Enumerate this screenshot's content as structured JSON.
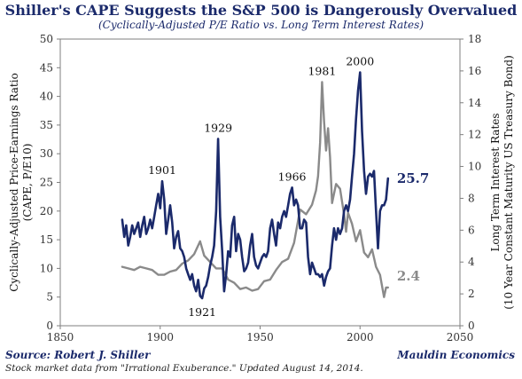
{
  "title": "Shiller's CAPE Suggests the S&P 500 is Dangerously Overvalued",
  "subtitle": "(Cyclically-Adjusted P/E Ratio vs. Long Term Interest Rates)",
  "source": "Source: Robert J. Shiller",
  "publisher": "Mauldin Economics",
  "footnote": "Stock market data from \"Irrational Exuberance.\" Updated August 14, 2014.",
  "chart_data": {
    "type": "line",
    "title": "Shiller's CAPE Suggests the S&P 500 is Dangerously Overvalued",
    "subtitle": "(Cyclically-Adjusted P/E Ratio vs. Long Term Interest Rates)",
    "xlim": [
      1850,
      2050
    ],
    "xticks": [
      1850,
      1900,
      1950,
      2000,
      2050
    ],
    "ylabel_left_line1": "Cyclically-Adjusted Price-Earnings Ratio",
    "ylabel_left_line2": "(CAPE, P/E10)",
    "ylabel_right_line1": "Long Term Interest Rates",
    "ylabel_right_line2": "(10 Year Constant Maturity US Treasury Bond)",
    "ylim_left": [
      0,
      50
    ],
    "yticks_left": [
      0,
      5,
      10,
      15,
      20,
      25,
      30,
      35,
      40,
      45,
      50
    ],
    "ylim_right": [
      0,
      18
    ],
    "yticks_right": [
      0,
      2,
      4,
      6,
      8,
      10,
      12,
      14,
      16,
      18
    ],
    "grid": false,
    "series": [
      {
        "axis": "left",
        "color": "#1b2a6b",
        "end_label": "25.7",
        "points": [
          [
            1881,
            18.5
          ],
          [
            1882,
            15.5
          ],
          [
            1883,
            17.5
          ],
          [
            1884,
            14
          ],
          [
            1885,
            15.5
          ],
          [
            1886,
            17.5
          ],
          [
            1887,
            16
          ],
          [
            1888,
            17
          ],
          [
            1889,
            18
          ],
          [
            1890,
            15.5
          ],
          [
            1891,
            17.5
          ],
          [
            1892,
            19
          ],
          [
            1893,
            16
          ],
          [
            1894,
            17
          ],
          [
            1895,
            18.5
          ],
          [
            1896,
            17
          ],
          [
            1897,
            19
          ],
          [
            1898,
            21
          ],
          [
            1899,
            23
          ],
          [
            1900,
            20.5
          ],
          [
            1901,
            25.2
          ],
          [
            1902,
            22
          ],
          [
            1903,
            16
          ],
          [
            1904,
            18.5
          ],
          [
            1905,
            21
          ],
          [
            1906,
            18
          ],
          [
            1907,
            13.5
          ],
          [
            1908,
            15.5
          ],
          [
            1909,
            16.5
          ],
          [
            1910,
            13.5
          ],
          [
            1911,
            13
          ],
          [
            1912,
            12
          ],
          [
            1913,
            10
          ],
          [
            1914,
            9
          ],
          [
            1915,
            8
          ],
          [
            1916,
            9
          ],
          [
            1917,
            7
          ],
          [
            1918,
            6
          ],
          [
            1919,
            8
          ],
          [
            1920,
            5.2
          ],
          [
            1921,
            4.8
          ],
          [
            1922,
            6.5
          ],
          [
            1923,
            7
          ],
          [
            1924,
            8.5
          ],
          [
            1925,
            10.5
          ],
          [
            1926,
            12
          ],
          [
            1927,
            14
          ],
          [
            1928,
            20
          ],
          [
            1929,
            32.6
          ],
          [
            1930,
            19
          ],
          [
            1931,
            13
          ],
          [
            1932,
            6
          ],
          [
            1933,
            9
          ],
          [
            1934,
            13
          ],
          [
            1935,
            12
          ],
          [
            1936,
            17.5
          ],
          [
            1937,
            19
          ],
          [
            1938,
            13
          ],
          [
            1939,
            16
          ],
          [
            1940,
            15
          ],
          [
            1941,
            12
          ],
          [
            1942,
            9.5
          ],
          [
            1943,
            10
          ],
          [
            1944,
            11
          ],
          [
            1945,
            14
          ],
          [
            1946,
            16
          ],
          [
            1947,
            12
          ],
          [
            1948,
            10.5
          ],
          [
            1949,
            10
          ],
          [
            1950,
            11
          ],
          [
            1951,
            12
          ],
          [
            1952,
            12.5
          ],
          [
            1953,
            12
          ],
          [
            1954,
            13
          ],
          [
            1955,
            17
          ],
          [
            1956,
            18.5
          ],
          [
            1957,
            16
          ],
          [
            1958,
            14
          ],
          [
            1959,
            18
          ],
          [
            1960,
            17
          ],
          [
            1961,
            19
          ],
          [
            1962,
            20
          ],
          [
            1963,
            19
          ],
          [
            1964,
            21
          ],
          [
            1965,
            23
          ],
          [
            1966,
            24.1
          ],
          [
            1967,
            21
          ],
          [
            1968,
            22
          ],
          [
            1969,
            21
          ],
          [
            1970,
            17
          ],
          [
            1971,
            17
          ],
          [
            1972,
            18.5
          ],
          [
            1973,
            18
          ],
          [
            1974,
            12
          ],
          [
            1975,
            9
          ],
          [
            1976,
            11
          ],
          [
            1977,
            10
          ],
          [
            1978,
            9
          ],
          [
            1979,
            9
          ],
          [
            1980,
            8.5
          ],
          [
            1981,
            9
          ],
          [
            1982,
            7
          ],
          [
            1983,
            8.5
          ],
          [
            1984,
            9.5
          ],
          [
            1985,
            10
          ],
          [
            1986,
            14
          ],
          [
            1987,
            17
          ],
          [
            1988,
            15
          ],
          [
            1989,
            17
          ],
          [
            1990,
            16
          ],
          [
            1991,
            17
          ],
          [
            1992,
            20
          ],
          [
            1993,
            21
          ],
          [
            1994,
            20
          ],
          [
            1995,
            22
          ],
          [
            1996,
            26
          ],
          [
            1997,
            30
          ],
          [
            1998,
            36
          ],
          [
            1999,
            41
          ],
          [
            2000,
            44.2
          ],
          [
            2001,
            34
          ],
          [
            2002,
            27
          ],
          [
            2003,
            23
          ],
          [
            2004,
            26
          ],
          [
            2005,
            26.5
          ],
          [
            2006,
            26
          ],
          [
            2007,
            27
          ],
          [
            2008,
            20
          ],
          [
            2009,
            13.5
          ],
          [
            2010,
            20
          ],
          [
            2011,
            21
          ],
          [
            2012,
            21
          ],
          [
            2013,
            22
          ],
          [
            2014,
            25.7
          ]
        ]
      },
      {
        "axis": "right",
        "color": "#8a8a8a",
        "end_label": "2.4",
        "points": [
          [
            1881,
            3.7
          ],
          [
            1884,
            3.6
          ],
          [
            1887,
            3.5
          ],
          [
            1890,
            3.7
          ],
          [
            1893,
            3.6
          ],
          [
            1896,
            3.5
          ],
          [
            1899,
            3.2
          ],
          [
            1902,
            3.2
          ],
          [
            1905,
            3.4
          ],
          [
            1908,
            3.5
          ],
          [
            1911,
            3.9
          ],
          [
            1914,
            4.1
          ],
          [
            1917,
            4.5
          ],
          [
            1920,
            5.3
          ],
          [
            1922,
            4.4
          ],
          [
            1925,
            4.0
          ],
          [
            1928,
            3.6
          ],
          [
            1931,
            3.6
          ],
          [
            1934,
            2.9
          ],
          [
            1937,
            2.7
          ],
          [
            1940,
            2.3
          ],
          [
            1943,
            2.4
          ],
          [
            1946,
            2.2
          ],
          [
            1949,
            2.3
          ],
          [
            1952,
            2.8
          ],
          [
            1955,
            2.9
          ],
          [
            1958,
            3.5
          ],
          [
            1961,
            4.0
          ],
          [
            1964,
            4.2
          ],
          [
            1967,
            5.2
          ],
          [
            1970,
            7.3
          ],
          [
            1973,
            7.0
          ],
          [
            1976,
            7.6
          ],
          [
            1978,
            8.5
          ],
          [
            1979,
            9.4
          ],
          [
            1980,
            11.5
          ],
          [
            1981,
            15.3
          ],
          [
            1982,
            12.8
          ],
          [
            1983,
            11.0
          ],
          [
            1984,
            12.4
          ],
          [
            1985,
            10.6
          ],
          [
            1986,
            7.7
          ],
          [
            1988,
            8.9
          ],
          [
            1990,
            8.6
          ],
          [
            1992,
            7.0
          ],
          [
            1993,
            5.9
          ],
          [
            1994,
            7.1
          ],
          [
            1996,
            6.4
          ],
          [
            1998,
            5.3
          ],
          [
            2000,
            6.0
          ],
          [
            2002,
            4.6
          ],
          [
            2004,
            4.3
          ],
          [
            2006,
            4.8
          ],
          [
            2008,
            3.7
          ],
          [
            2010,
            3.2
          ],
          [
            2012,
            1.8
          ],
          [
            2013,
            2.4
          ],
          [
            2014,
            2.4
          ]
        ]
      }
    ],
    "annotations": [
      {
        "text": "1901",
        "x": 1901,
        "axis": "left",
        "y": 25.2
      },
      {
        "text": "1921",
        "x": 1921,
        "axis": "left",
        "y": 4.8
      },
      {
        "text": "1929",
        "x": 1929,
        "axis": "left",
        "y": 32.6
      },
      {
        "text": "1966",
        "x": 1966,
        "axis": "left",
        "y": 24.1
      },
      {
        "text": "1981",
        "x": 1981,
        "axis": "right",
        "y": 15.3
      },
      {
        "text": "2000",
        "x": 2000,
        "axis": "left",
        "y": 44.2
      }
    ]
  }
}
